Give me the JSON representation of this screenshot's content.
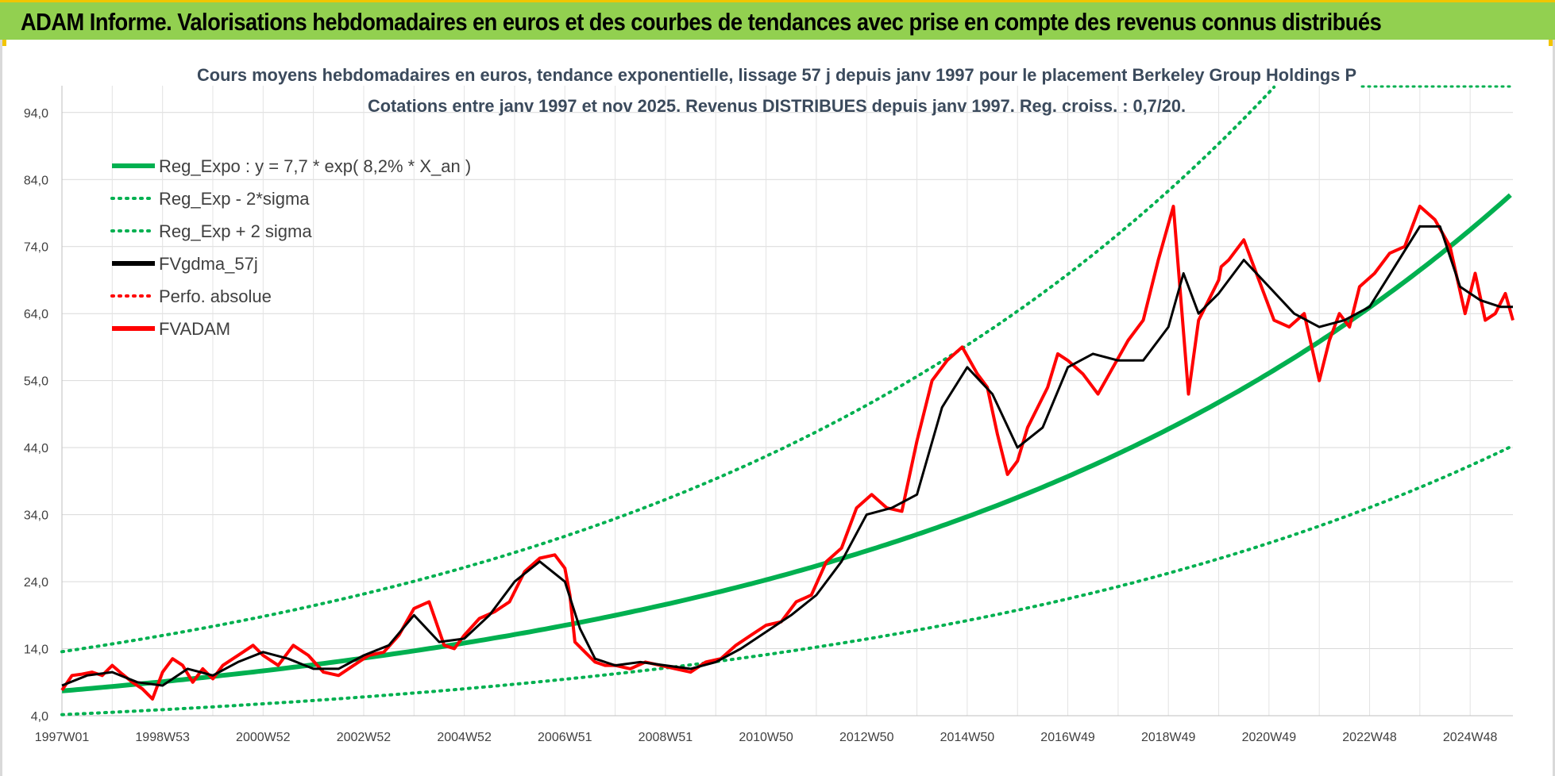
{
  "header": {
    "title": "ADAM Informe. Valorisations hebdomadaires en euros et des courbes de tendances avec prise en compte des revenus connus distribués"
  },
  "colors": {
    "banner": "#92d050",
    "reg_expo": "#00b050",
    "fvgdma": "#000000",
    "fvadam": "#ff0000",
    "perfo": "#ff0000"
  },
  "chart_data": {
    "type": "line",
    "title_line1": "Cours moyens hebdomadaires en euros, tendance exponentielle, lissage 57 j depuis janv 1997 pour le placement Berkeley Group Holdings P",
    "title_line2": "Cotations entre janv 1997 et nov 2025. Revenus DISTRIBUES depuis janv 1997. Reg. croiss. : 0,7/20.",
    "x_range": [
      1997.0,
      2025.85
    ],
    "ylim": [
      4,
      98
    ],
    "y_ticks": [
      "4,0",
      "14,0",
      "24,0",
      "34,0",
      "44,0",
      "54,0",
      "64,0",
      "74,0",
      "84,0",
      "94,0"
    ],
    "y_tick_values": [
      4,
      14,
      24,
      34,
      44,
      54,
      64,
      74,
      84,
      94
    ],
    "x_tick_labels": [
      "1997W01",
      "1998W53",
      "2000W52",
      "2002W52",
      "2004W52",
      "2006W51",
      "2008W51",
      "2010W50",
      "2012W50",
      "2014W50",
      "2016W49",
      "2018W49",
      "2020W49",
      "2022W48",
      "2024W48"
    ],
    "x_tick_values": [
      1997.0,
      1999.0,
      2001.0,
      2003.0,
      2005.0,
      2007.0,
      2009.0,
      2011.0,
      2013.0,
      2015.0,
      2017.0,
      2019.0,
      2021.0,
      2023.0,
      2025.0
    ],
    "grid": true,
    "legend": {
      "placement": "top-left",
      "items": [
        {
          "label": "Reg_Expo : y = 7,7 * exp( 8,2% *  X_an )",
          "style": "solid",
          "color": "#00b050"
        },
        {
          "label": "Reg_Exp - 2*sigma",
          "style": "dotted",
          "color": "#00b050"
        },
        {
          "label": "Reg_Exp + 2 sigma",
          "style": "dotted",
          "color": "#00b050"
        },
        {
          "label": "FVgdma_57j",
          "style": "solid",
          "color": "#000000"
        },
        {
          "label": "Perfo. absolue",
          "style": "dotted",
          "color": "#ff0000"
        },
        {
          "label": "FVADAM",
          "style": "solid",
          "color": "#ff0000"
        }
      ]
    },
    "regression": {
      "a": 7.7,
      "b": 0.082,
      "lower_factor": 0.54,
      "upper_factor": 1.76
    },
    "series": [
      {
        "name": "FVADAM",
        "x": [
          1997.0,
          1997.2,
          1997.4,
          1997.6,
          1997.8,
          1998.0,
          1998.2,
          1998.4,
          1998.6,
          1998.8,
          1999.0,
          1999.2,
          1999.4,
          1999.6,
          1999.8,
          2000.0,
          2000.2,
          2000.4,
          2000.6,
          2000.8,
          2001.0,
          2001.3,
          2001.6,
          2001.9,
          2002.2,
          2002.5,
          2002.8,
          2003.1,
          2003.4,
          2003.7,
          2004.0,
          2004.3,
          2004.6,
          2004.8,
          2005.0,
          2005.3,
          2005.6,
          2005.9,
          2006.2,
          2006.5,
          2006.8,
          2007.0,
          2007.1,
          2007.2,
          2007.4,
          2007.6,
          2007.8,
          2008.0,
          2008.3,
          2008.6,
          2008.9,
          2009.2,
          2009.5,
          2009.8,
          2010.1,
          2010.4,
          2010.7,
          2011.0,
          2011.3,
          2011.6,
          2011.9,
          2012.2,
          2012.5,
          2012.8,
          2013.1,
          2013.4,
          2013.7,
          2014.0,
          2014.3,
          2014.6,
          2014.9,
          2015.2,
          2015.4,
          2015.6,
          2015.8,
          2016.0,
          2016.2,
          2016.4,
          2016.6,
          2016.8,
          2017.0,
          2017.3,
          2017.6,
          2017.9,
          2018.2,
          2018.5,
          2018.8,
          2019.1,
          2019.4,
          2019.6,
          2019.8,
          2020.0,
          2020.05,
          2020.2,
          2020.5,
          2020.8,
          2021.1,
          2021.4,
          2021.7,
          2022.0,
          2022.2,
          2022.4,
          2022.6,
          2022.8,
          2023.1,
          2023.4,
          2023.7,
          2024.0,
          2024.3,
          2024.6,
          2024.9,
          2025.1,
          2025.3,
          2025.5,
          2025.7,
          2025.85
        ],
        "values": [
          7.8,
          10.0,
          10.2,
          10.5,
          10.0,
          11.5,
          10.2,
          9.0,
          8.0,
          6.5,
          10.5,
          12.5,
          11.5,
          9.0,
          11.0,
          9.5,
          11.5,
          12.5,
          13.5,
          14.5,
          13.0,
          11.5,
          14.5,
          13.0,
          10.5,
          10.0,
          11.5,
          13.0,
          13.5,
          16.0,
          20.0,
          21.0,
          14.5,
          14.0,
          16.0,
          18.5,
          19.5,
          21.0,
          25.5,
          27.5,
          28.0,
          26.0,
          22.0,
          15.0,
          13.5,
          12.0,
          11.5,
          11.5,
          11.0,
          12.0,
          11.5,
          11.0,
          10.5,
          12.0,
          12.5,
          14.5,
          16.0,
          17.5,
          18.0,
          21.0,
          22.0,
          27.0,
          29.0,
          35.0,
          37.0,
          35.0,
          34.5,
          45.0,
          54.0,
          57.0,
          59.0,
          55.0,
          53.0,
          46.0,
          40.0,
          42.0,
          47.0,
          50.0,
          53.0,
          58.0,
          57.0,
          55.0,
          52.0,
          56.0,
          60.0,
          63.0,
          72.0,
          80.0,
          52.0,
          63.0,
          66.0,
          69.0,
          71.0,
          72.0,
          75.0,
          69.0,
          63.0,
          62.0,
          64.0,
          54.0,
          60.0,
          64.0,
          62.0,
          68.0,
          70.0,
          73.0,
          74.0,
          80.0,
          78.0,
          74.0,
          64.0,
          70.0,
          63.0,
          64.0,
          67.0,
          63.0
        ]
      },
      {
        "name": "FVgdma_57j",
        "x": [
          1997.0,
          1997.5,
          1998.0,
          1998.5,
          1999.0,
          1999.5,
          2000.0,
          2000.5,
          2001.0,
          2001.5,
          2002.0,
          2002.5,
          2003.0,
          2003.5,
          2004.0,
          2004.5,
          2005.0,
          2005.5,
          2006.0,
          2006.5,
          2007.0,
          2007.3,
          2007.6,
          2008.0,
          2008.5,
          2009.0,
          2009.5,
          2010.0,
          2010.5,
          2011.0,
          2011.5,
          2012.0,
          2012.5,
          2013.0,
          2013.5,
          2014.0,
          2014.5,
          2015.0,
          2015.5,
          2016.0,
          2016.5,
          2017.0,
          2017.5,
          2018.0,
          2018.5,
          2019.0,
          2019.3,
          2019.6,
          2020.0,
          2020.5,
          2021.0,
          2021.5,
          2022.0,
          2022.5,
          2023.0,
          2023.5,
          2024.0,
          2024.4,
          2024.8,
          2025.2,
          2025.6,
          2025.85
        ],
        "values": [
          8.5,
          10.0,
          10.5,
          9.0,
          8.5,
          11.0,
          10.0,
          12.0,
          13.5,
          12.5,
          11.0,
          11.0,
          13.0,
          14.5,
          19.0,
          15.0,
          15.5,
          19.0,
          24.0,
          27.0,
          24.0,
          17.0,
          12.5,
          11.5,
          12.0,
          11.5,
          11.0,
          12.0,
          14.0,
          16.5,
          19.0,
          22.0,
          27.0,
          34.0,
          35.0,
          37.0,
          50.0,
          56.0,
          52.0,
          44.0,
          47.0,
          56.0,
          58.0,
          57.0,
          57.0,
          62.0,
          70.0,
          64.0,
          67.0,
          72.0,
          68.0,
          64.0,
          62.0,
          63.0,
          65.0,
          71.0,
          77.0,
          77.0,
          68.0,
          66.0,
          65.0,
          65.0
        ]
      }
    ]
  }
}
